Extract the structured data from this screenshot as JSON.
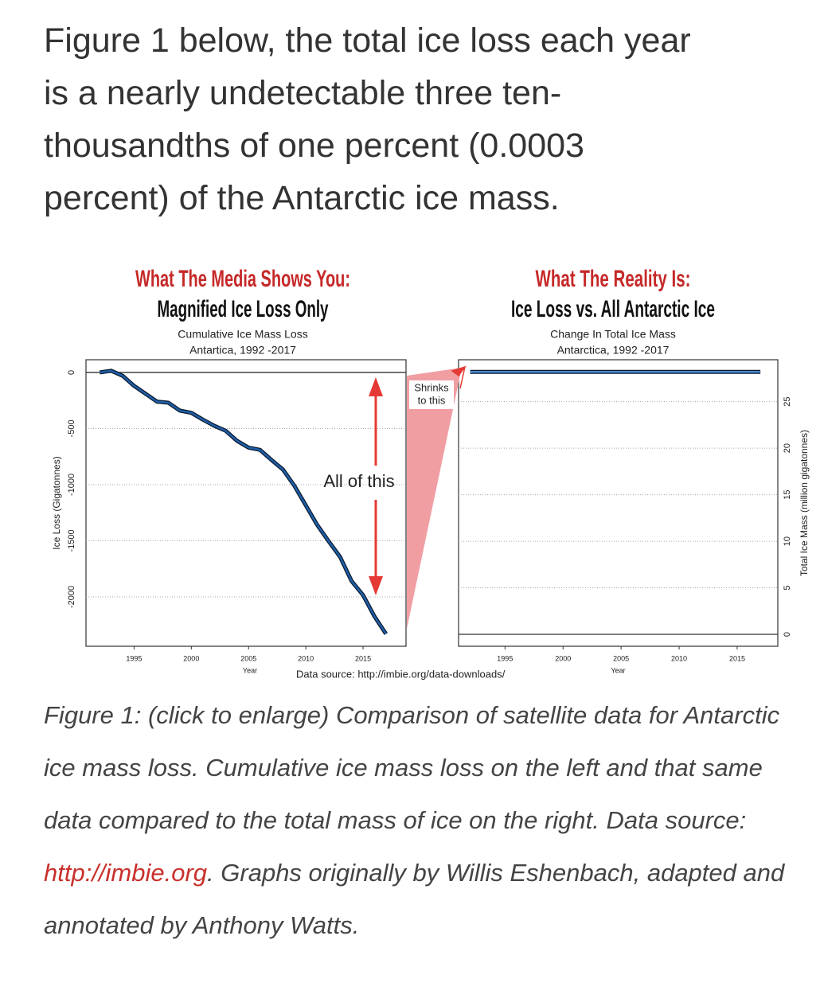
{
  "paragraph_lines": [
    "Figure 1 below, the total ice loss each year",
    "is a nearly undetectable three ten-",
    "thousandths of one percent (0.0003",
    "percent) of the Antarctic ice mass."
  ],
  "caption": {
    "before": "Figure 1: (click to enlarge) Comparison of satellite data for Antarctic ice mass loss. Cumulative ice mass loss on the left and that same data compared to the total mass of ice on the right. Data source: ",
    "link": "http://imbie.org",
    "after": ". Graphs originally by Willis Eshenbach, adapted and annotated by Anthony Watts."
  },
  "source": "Data source: http://imbie.org/data-downloads/",
  "wedge_label": [
    "Shrinks",
    "to this"
  ],
  "chart_data": [
    {
      "type": "line",
      "title_lines": [
        "What The Media Shows You:",
        "Magnified Ice Loss Only"
      ],
      "subtitle_lines": [
        "Cumulative Ice Mass Loss",
        "Antartica, 1992 -2017"
      ],
      "y_label": "Ice Loss (Gigatonnes)",
      "x_label": "Year",
      "x": [
        1992,
        1993,
        1994,
        1995,
        1996,
        1997,
        1998,
        1999,
        2000,
        2001,
        2002,
        2003,
        2004,
        2005,
        2006,
        2007,
        2008,
        2009,
        2010,
        2011,
        2012,
        2013,
        2014,
        2015,
        2016,
        2017
      ],
      "values": [
        0,
        15,
        -30,
        -120,
        -190,
        -260,
        -270,
        -340,
        -360,
        -420,
        -475,
        -520,
        -610,
        -670,
        -690,
        -780,
        -865,
        -1010,
        -1185,
        -1360,
        -1505,
        -1645,
        -1860,
        -1985,
        -2175,
        -2330
      ],
      "color": "#1f5fa8",
      "xlim": [
        1990.8,
        2018.75
      ],
      "ylim": [
        -2440,
        113
      ],
      "xticks": [
        1995,
        2000,
        2005,
        2010,
        2015
      ],
      "yticks": [
        0,
        -500,
        -1000,
        -1500,
        -2000
      ],
      "grid": true,
      "y_axis_side": "left",
      "annotation": "All of this"
    },
    {
      "type": "line",
      "title_lines": [
        "What The Reality Is:",
        "Ice Loss vs. All Antarctic Ice"
      ],
      "subtitle_lines": [
        "Change In Total Ice Mass",
        "Antarctica, 1992 -2017"
      ],
      "y_label": "Total Ice Mass (million gigatonnes)",
      "x_label": "Year",
      "x": [
        1992,
        2017
      ],
      "values": [
        28.2,
        28.198
      ],
      "color": "#4a86c8",
      "xlim": [
        1991,
        2018.5
      ],
      "ylim": [
        -1.28,
        29.5
      ],
      "xticks": [
        1995,
        2000,
        2005,
        2010,
        2015
      ],
      "yticks": [
        0,
        5,
        10,
        15,
        20,
        25
      ],
      "grid": true,
      "y_axis_side": "right"
    }
  ]
}
